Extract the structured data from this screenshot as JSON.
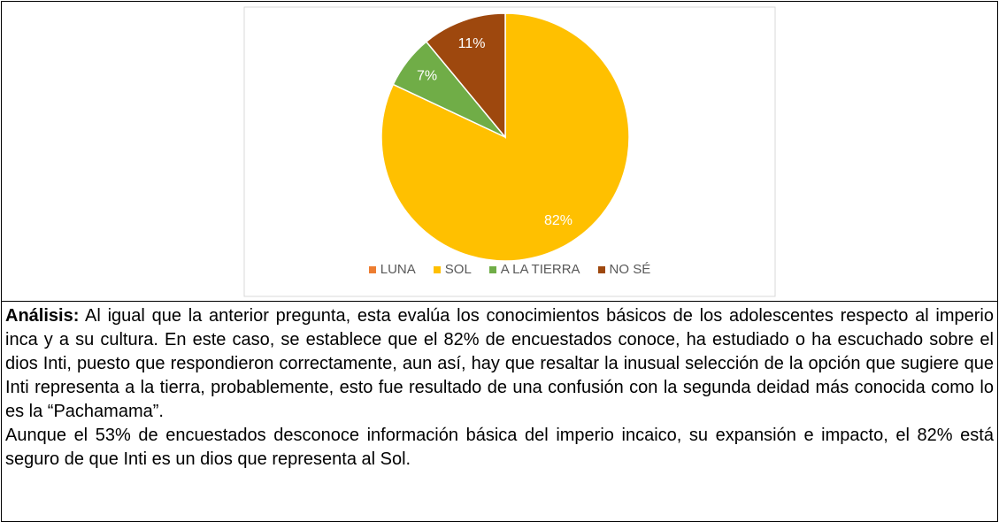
{
  "chart_data": {
    "type": "pie",
    "categories": [
      "LUNA",
      "SOL",
      "A LA TIERRA",
      "NO SÉ"
    ],
    "values": [
      0,
      82,
      7,
      11
    ],
    "value_labels": [
      null,
      "82%",
      "7%",
      "11%"
    ],
    "colors": [
      "#ed7d31",
      "#ffc000",
      "#70ad47",
      "#9e480e"
    ],
    "legend": "bottom"
  },
  "analysis": {
    "label": "Análisis:",
    "paragraphs": [
      "Al igual que la anterior pregunta, esta evalúa los conocimientos básicos de los adolescentes respecto al imperio inca y a su cultura. En este caso, se establece que el 82% de encuestados conoce, ha estudiado o ha escuchado sobre el dios Inti, puesto que respondieron correctamente, aun así, hay que resaltar la inusual selección de la opción que sugiere que Inti representa a la tierra, probablemente, esto fue resultado de una confusión con la segunda deidad más conocida como lo es la “Pachamama”.",
      "Aunque el 53% de encuestados desconoce información básica del imperio incaico, su expansión e impacto, el 82% está seguro de que Inti es un dios que representa al Sol."
    ]
  }
}
